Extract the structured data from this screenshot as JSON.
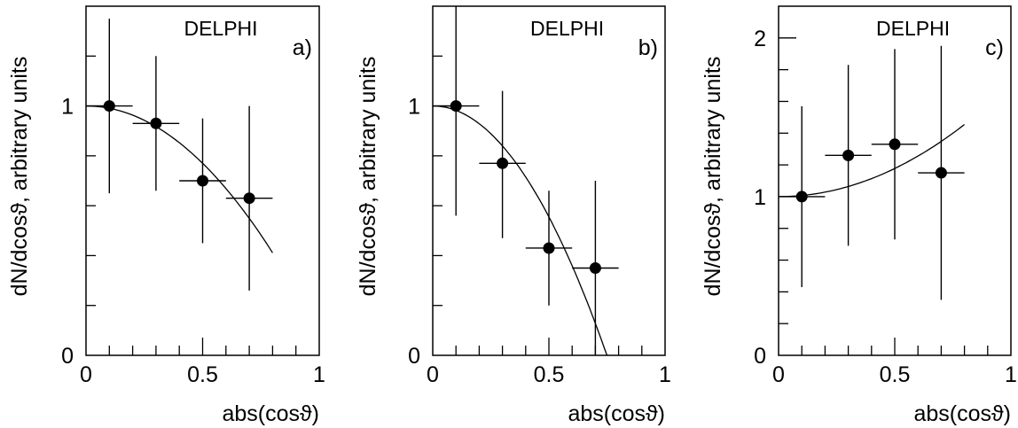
{
  "chart_data": [
    {
      "type": "scatter",
      "panel_label": "a)",
      "experiment": "DELPHI",
      "xlabel": "abs(cosϑ)",
      "ylabel": "dN/dcosϑ, arbitrary units",
      "xlim": [
        0,
        1
      ],
      "ylim": [
        0,
        1.4
      ],
      "x_ticks": [
        0,
        0.5,
        1
      ],
      "x_tick_labels": [
        "0",
        "0.5",
        "1"
      ],
      "y_ticks": [
        0,
        1
      ],
      "y_tick_labels": [
        "0",
        "1"
      ],
      "points": [
        {
          "x": 0.1,
          "y": 1.0,
          "xerr": 0.1,
          "ylow": 0.65,
          "yhigh": 1.35
        },
        {
          "x": 0.3,
          "y": 0.93,
          "xerr": 0.1,
          "ylow": 0.66,
          "yhigh": 1.2
        },
        {
          "x": 0.5,
          "y": 0.7,
          "xerr": 0.1,
          "ylow": 0.45,
          "yhigh": 0.95
        },
        {
          "x": 0.7,
          "y": 0.63,
          "xerr": 0.1,
          "ylow": 0.26,
          "yhigh": 1.0
        }
      ],
      "fit": {
        "form": "1 + b*x^2",
        "b": -0.92,
        "xrange": [
          0,
          0.8
        ]
      }
    },
    {
      "type": "scatter",
      "panel_label": "b)",
      "experiment": "DELPHI",
      "xlabel": "abs(cosϑ)",
      "ylabel": "dN/dcosϑ, arbitrary units",
      "xlim": [
        0,
        1
      ],
      "ylim": [
        0,
        1.4
      ],
      "x_ticks": [
        0,
        0.5,
        1
      ],
      "x_tick_labels": [
        "0",
        "0.5",
        "1"
      ],
      "y_ticks": [
        0,
        1
      ],
      "y_tick_labels": [
        "0",
        "1"
      ],
      "points": [
        {
          "x": 0.1,
          "y": 1.0,
          "xerr": 0.1,
          "ylow": 0.56,
          "yhigh": 1.4
        },
        {
          "x": 0.3,
          "y": 0.77,
          "xerr": 0.1,
          "ylow": 0.47,
          "yhigh": 1.06
        },
        {
          "x": 0.5,
          "y": 0.43,
          "xerr": 0.1,
          "ylow": 0.2,
          "yhigh": 0.66
        },
        {
          "x": 0.7,
          "y": 0.35,
          "xerr": 0.1,
          "ylow": 0.0,
          "yhigh": 0.7
        }
      ],
      "fit": {
        "form": "1 + b*x^2",
        "b": -1.78,
        "xrange": [
          0,
          0.75
        ]
      }
    },
    {
      "type": "scatter",
      "panel_label": "c)",
      "experiment": "DELPHI",
      "xlabel": "abs(cosϑ)",
      "ylabel": "dN/dcosϑ, arbitrary units",
      "xlim": [
        0,
        1
      ],
      "ylim": [
        0,
        2.2
      ],
      "x_ticks": [
        0,
        0.5,
        1
      ],
      "x_tick_labels": [
        "0",
        "0.5",
        "1"
      ],
      "y_ticks": [
        0,
        1,
        2
      ],
      "y_tick_labels": [
        "0",
        "1",
        "2"
      ],
      "points": [
        {
          "x": 0.1,
          "y": 1.0,
          "xerr": 0.1,
          "ylow": 0.43,
          "yhigh": 1.57
        },
        {
          "x": 0.3,
          "y": 1.26,
          "xerr": 0.1,
          "ylow": 0.69,
          "yhigh": 1.83
        },
        {
          "x": 0.5,
          "y": 1.33,
          "xerr": 0.1,
          "ylow": 0.73,
          "yhigh": 1.93
        },
        {
          "x": 0.7,
          "y": 1.15,
          "xerr": 0.1,
          "ylow": 0.35,
          "yhigh": 1.95
        }
      ],
      "fit": {
        "form": "1 + b*x^2",
        "b": 0.71,
        "xrange": [
          0,
          0.8
        ]
      }
    }
  ]
}
